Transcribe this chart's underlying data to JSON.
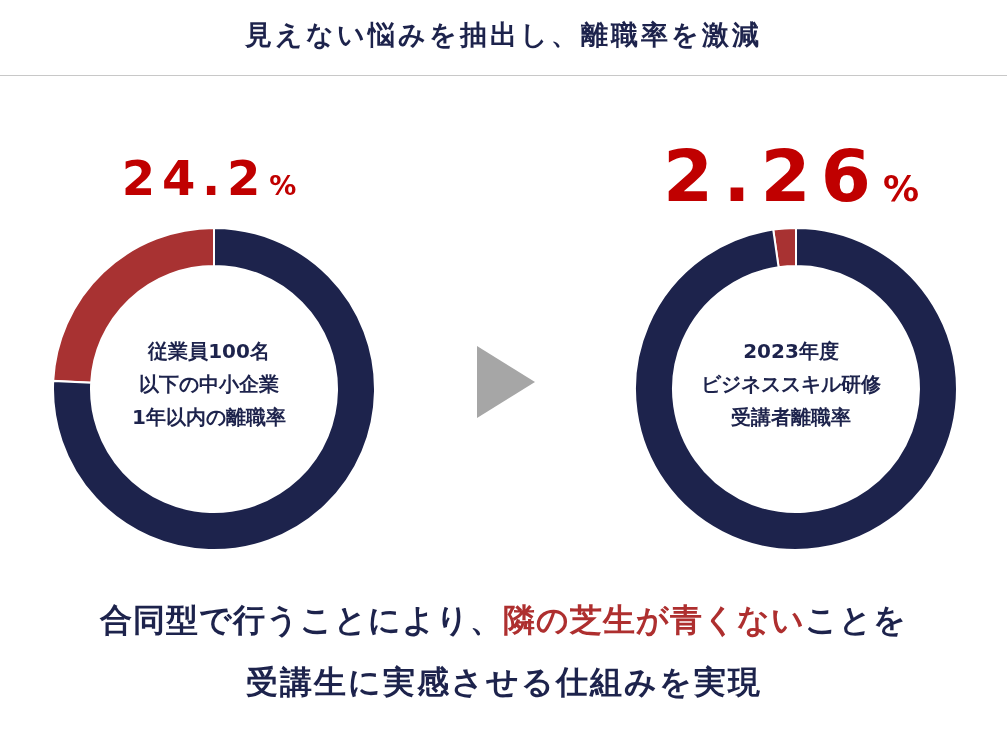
{
  "chart_data": [
    {
      "type": "other",
      "title": "見えない悩みを抽出し、離職率を激減"
    },
    {
      "type": "donut",
      "categories": [
        null,
        null
      ],
      "values": [
        24.2,
        75.8
      ],
      "colors": [
        "#a83232",
        "#1d234c"
      ],
      "value_labels": [
        "24.2%",
        null
      ],
      "annotations": [
        "従業員100名",
        "以下の中小企業",
        "1年以内の離職率"
      ]
    },
    {
      "type": "donut",
      "categories": [
        null,
        null
      ],
      "values": [
        2.26,
        97.74
      ],
      "colors": [
        "#a83232",
        "#1d234c"
      ],
      "value_labels": [
        "2.26%",
        null
      ],
      "annotations": [
        "2023年度",
        "ビジネススキル研修",
        "受講者離職率"
      ]
    },
    {
      "type": "other",
      "annotations": [
        "合同型で行うことにより、",
        "隣の芝生が青くない",
        "ことを",
        "受講生に実感させる仕組みを実現"
      ]
    }
  ]
}
